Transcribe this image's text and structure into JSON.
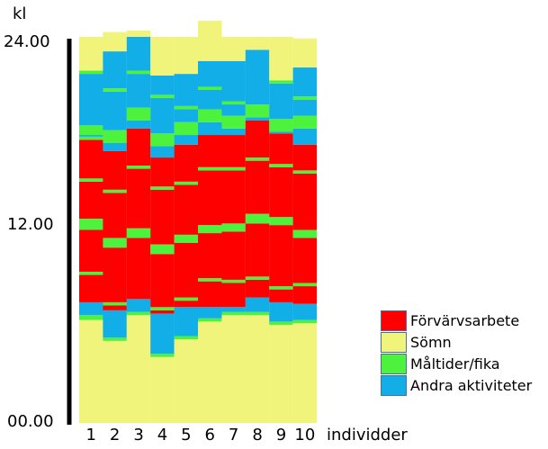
{
  "chart_data": {
    "type": "bar",
    "stacked": true,
    "unit_label": "kl",
    "xlabel": "individder",
    "categories": [
      "1",
      "2",
      "3",
      "4",
      "5",
      "6",
      "7",
      "8",
      "9",
      "10"
    ],
    "yticks": [
      "00.00",
      "12.00",
      "24.00"
    ],
    "ylim": [
      0,
      24
    ],
    "legend_position": "bottom-right",
    "activity_colors": {
      "Förvärvsarbete": "#ff0000",
      "Sömn": "#f0f47a",
      "Måltider/fika": "#4cf23c",
      "Andra aktiviteter": "#12aee8"
    },
    "segments": [
      [
        [
          "Sömn",
          6.4
        ],
        [
          "Måltider/fika",
          0.3
        ],
        [
          "Andra aktiviteter",
          0.8
        ],
        [
          "Förvärvsarbete",
          1.7
        ],
        [
          "Måltider/fika",
          0.2
        ],
        [
          "Förvärvsarbete",
          2.6
        ],
        [
          "Måltider/fika",
          0.7
        ],
        [
          "Förvärvsarbete",
          2.3
        ],
        [
          "Måltider/fika",
          0.2
        ],
        [
          "Förvärvsarbete",
          2.4
        ],
        [
          "Måltider/fika",
          0.2
        ],
        [
          "Andra aktiviteter",
          0.1
        ],
        [
          "Måltider/fika",
          0.6
        ],
        [
          "Andra aktiviteter",
          3.2
        ],
        [
          "Måltider/fika",
          0.2
        ],
        [
          "Sömn",
          2.1
        ]
      ],
      [
        [
          "Sömn",
          5.1
        ],
        [
          "Måltider/fika",
          0.2
        ],
        [
          "Andra aktiviteter",
          1.7
        ],
        [
          "Förvärvsarbete",
          0.3
        ],
        [
          "Måltider/fika",
          0.2
        ],
        [
          "Förvärvsarbete",
          3.4
        ],
        [
          "Måltider/fika",
          0.6
        ],
        [
          "Förvärvsarbete",
          2.8
        ],
        [
          "Måltider/fika",
          0.2
        ],
        [
          "Förvärvsarbete",
          2.4
        ],
        [
          "Andra aktiviteter",
          0.5
        ],
        [
          "Måltider/fika",
          0.8
        ],
        [
          "Andra aktiviteter",
          2.4
        ],
        [
          "Måltider/fika",
          0.2
        ],
        [
          "Andra aktiviteter",
          2.3
        ],
        [
          "Sömn",
          1.2
        ]
      ],
      [
        [
          "Sömn",
          6.7
        ],
        [
          "Måltider/fika",
          0.2
        ],
        [
          "Andra aktiviteter",
          0.8
        ],
        [
          "Förvärvsarbete",
          3.8
        ],
        [
          "Måltider/fika",
          0.6
        ],
        [
          "Förvärvsarbete",
          3.7
        ],
        [
          "Måltider/fika",
          0.2
        ],
        [
          "Förvärvsarbete",
          2.3
        ],
        [
          "Andra aktiviteter",
          0.5
        ],
        [
          "Måltider/fika",
          0.8
        ],
        [
          "Andra aktiviteter",
          2.1
        ],
        [
          "Måltider/fika",
          0.2
        ],
        [
          "Andra aktiviteter",
          2.1
        ],
        [
          "Sömn",
          0.4
        ]
      ],
      [
        [
          "Sömn",
          4.1
        ],
        [
          "Måltider/fika",
          0.2
        ],
        [
          "Andra aktiviteter",
          2.5
        ],
        [
          "Förvärvsarbete",
          0.2
        ],
        [
          "Måltider/fika",
          0.2
        ],
        [
          "Förvärvsarbete",
          3.3
        ],
        [
          "Måltider/fika",
          0.6
        ],
        [
          "Förvärvsarbete",
          3.4
        ],
        [
          "Måltider/fika",
          0.2
        ],
        [
          "Förvärvsarbete",
          1.8
        ],
        [
          "Andra aktiviteter",
          0.7
        ],
        [
          "Måltider/fika",
          0.8
        ],
        [
          "Andra aktiviteter",
          2.2
        ],
        [
          "Måltider/fika",
          0.2
        ],
        [
          "Andra aktiviteter",
          1.2
        ],
        [
          "Sömn",
          2.4
        ]
      ],
      [
        [
          "Sömn",
          5.2
        ],
        [
          "Måltider/fika",
          0.2
        ],
        [
          "Andra aktiviteter",
          1.8
        ],
        [
          "Förvärvsarbete",
          0.4
        ],
        [
          "Måltider/fika",
          0.2
        ],
        [
          "Förvärvsarbete",
          3.4
        ],
        [
          "Måltider/fika",
          0.5
        ],
        [
          "Förvärvsarbete",
          3.1
        ],
        [
          "Måltider/fika",
          0.2
        ],
        [
          "Förvärvsarbete",
          2.3
        ],
        [
          "Andra aktiviteter",
          0.6
        ],
        [
          "Måltider/fika",
          0.8
        ],
        [
          "Andra aktiviteter",
          0.8
        ],
        [
          "Måltider/fika",
          0.2
        ],
        [
          "Andra aktiviteter",
          2.0
        ],
        [
          "Sömn",
          2.3
        ]
      ],
      [
        [
          "Sömn",
          6.3
        ],
        [
          "Måltider/fika",
          0.2
        ],
        [
          "Andra aktiviteter",
          0.7
        ],
        [
          "Förvärvsarbete",
          1.6
        ],
        [
          "Måltider/fika",
          0.2
        ],
        [
          "Förvärvsarbete",
          2.8
        ],
        [
          "Måltider/fika",
          0.5
        ],
        [
          "Förvärvsarbete",
          3.4
        ],
        [
          "Måltider/fika",
          0.2
        ],
        [
          "Förvärvsarbete",
          2.0
        ],
        [
          "Andra aktiviteter",
          0.8
        ],
        [
          "Måltider/fika",
          0.8
        ],
        [
          "Andra aktiviteter",
          1.2
        ],
        [
          "Måltider/fika",
          0.2
        ],
        [
          "Andra aktiviteter",
          1.6
        ],
        [
          "Sömn",
          2.5
        ]
      ],
      [
        [
          "Sömn",
          6.7
        ],
        [
          "Måltider/fika",
          0.2
        ],
        [
          "Andra aktiviteter",
          0.3
        ],
        [
          "Förvärvsarbete",
          1.5
        ],
        [
          "Måltider/fika",
          0.2
        ],
        [
          "Förvärvsarbete",
          3.0
        ],
        [
          "Måltider/fika",
          0.5
        ],
        [
          "Förvärvsarbete",
          3.3
        ],
        [
          "Måltider/fika",
          0.2
        ],
        [
          "Förvärvsarbete",
          2.0
        ],
        [
          "Andra aktiviteter",
          0.4
        ],
        [
          "Måltider/fika",
          0.8
        ],
        [
          "Andra aktiviteter",
          0.7
        ],
        [
          "Måltider/fika",
          0.2
        ],
        [
          "Andra aktiviteter",
          2.5
        ],
        [
          "Sömn",
          1.5
        ]
      ],
      [
        [
          "Sömn",
          6.7
        ],
        [
          "Måltider/fika",
          0.2
        ],
        [
          "Andra aktiviteter",
          0.9
        ],
        [
          "Förvärvsarbete",
          1.1
        ],
        [
          "Måltider/fika",
          0.2
        ],
        [
          "Förvärvsarbete",
          3.3
        ],
        [
          "Måltider/fika",
          0.6
        ],
        [
          "Förvärvsarbete",
          3.3
        ],
        [
          "Måltider/fika",
          0.2
        ],
        [
          "Förvärvsarbete",
          2.3
        ],
        [
          "Andra aktiviteter",
          0.2
        ],
        [
          "Måltider/fika",
          0.8
        ],
        [
          "Andra aktiviteter",
          3.4
        ],
        [
          "Sömn",
          0.8
        ]
      ],
      [
        [
          "Sömn",
          6.1
        ],
        [
          "Måltider/fika",
          0.2
        ],
        [
          "Andra aktiviteter",
          1.2
        ],
        [
          "Förvärvsarbete",
          0.8
        ],
        [
          "Måltider/fika",
          0.2
        ],
        [
          "Förvärvsarbete",
          3.8
        ],
        [
          "Måltider/fika",
          0.5
        ],
        [
          "Förvärvsarbete",
          3.1
        ],
        [
          "Måltider/fika",
          0.2
        ],
        [
          "Förvärvsarbete",
          1.9
        ],
        [
          "Andra aktiviteter",
          0.1
        ],
        [
          "Måltider/fika",
          0.8
        ],
        [
          "Andra aktiviteter",
          2.2
        ],
        [
          "Måltider/fika",
          0.2
        ],
        [
          "Sömn",
          2.7
        ]
      ],
      [
        [
          "Sömn",
          6.2
        ],
        [
          "Måltider/fika",
          0.2
        ],
        [
          "Andra aktiviteter",
          1.0
        ],
        [
          "Förvärvsarbete",
          1.1
        ],
        [
          "Måltider/fika",
          0.2
        ],
        [
          "Förvärvsarbete",
          2.8
        ],
        [
          "Måltider/fika",
          0.5
        ],
        [
          "Förvärvsarbete",
          3.5
        ],
        [
          "Måltider/fika",
          0.2
        ],
        [
          "Förvärvsarbete",
          1.6
        ],
        [
          "Andra aktiviteter",
          1.0
        ],
        [
          "Måltider/fika",
          0.8
        ],
        [
          "Andra aktiviteter",
          1.0
        ],
        [
          "Måltider/fika",
          0.2
        ],
        [
          "Andra aktiviteter",
          1.8
        ],
        [
          "Sömn",
          1.8
        ]
      ]
    ],
    "legend": [
      "Förvärvsarbete",
      "Sömn",
      "Måltider/fika",
      "Andra aktiviteter"
    ]
  }
}
